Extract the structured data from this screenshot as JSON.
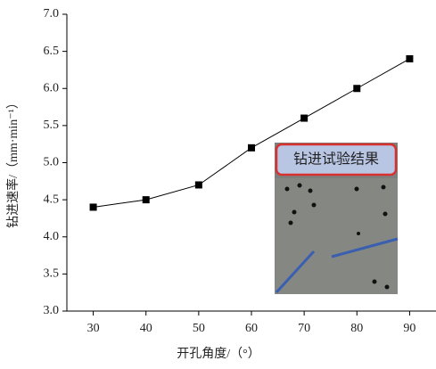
{
  "chart_data": {
    "type": "line",
    "x_label": "开孔角度/（°）",
    "y_label": "钻进速率/（mm·min⁻¹）",
    "x": [
      30,
      40,
      50,
      60,
      70,
      80,
      90
    ],
    "series": [
      {
        "color": "#000000",
        "values": [
          4.4,
          4.5,
          4.7,
          5.2,
          5.6,
          6.0,
          6.4
        ]
      }
    ],
    "xlim": [
      25,
      95
    ],
    "xticks": [
      30,
      40,
      50,
      60,
      70,
      80,
      90
    ],
    "ylim": [
      3,
      7
    ],
    "yticks": [
      {
        "value": 3,
        "label": "3.0"
      },
      {
        "value": 3.5,
        "label": "3.5"
      },
      {
        "value": 4,
        "label": "4.0"
      },
      {
        "value": 4.5,
        "label": "4.5"
      },
      {
        "value": 5,
        "label": "5.0"
      },
      {
        "value": 5.5,
        "label": "5.5"
      },
      {
        "value": 6,
        "label": "6.0"
      },
      {
        "value": 6.5,
        "label": "6.5"
      },
      {
        "value": 7,
        "label": "7.0"
      }
    ],
    "inset_label": "钻进试验结果"
  }
}
